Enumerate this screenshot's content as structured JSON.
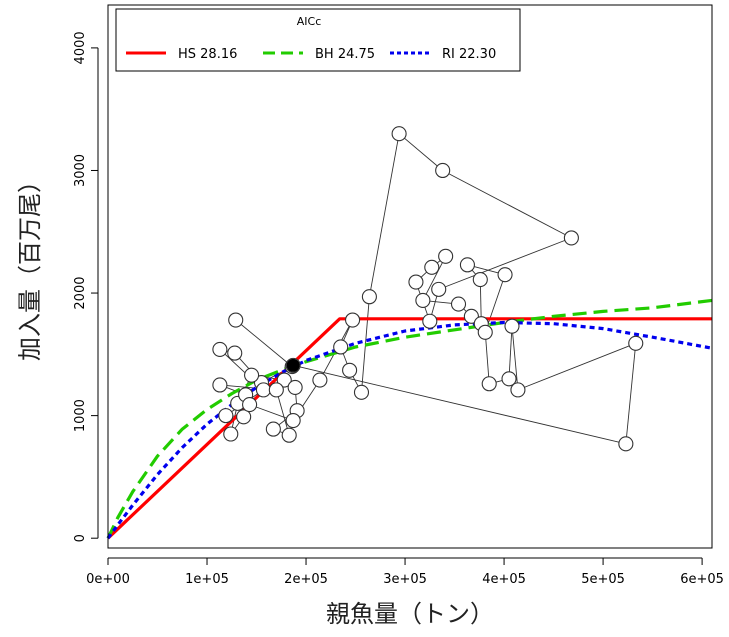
{
  "chart_data": {
    "type": "scatter",
    "xlabel": "親魚量（トン）",
    "ylabel": "加入量（百万尾）",
    "xlim": [
      0,
      610000
    ],
    "ylim": [
      -80,
      4350
    ],
    "x_ticks": [
      {
        "value": 0,
        "label": "0e+00"
      },
      {
        "value": 100000,
        "label": "1e+05"
      },
      {
        "value": 200000,
        "label": "2e+05"
      },
      {
        "value": 300000,
        "label": "3e+05"
      },
      {
        "value": 400000,
        "label": "4e+05"
      },
      {
        "value": 500000,
        "label": "5e+05"
      },
      {
        "value": 600000,
        "label": "6e+05"
      }
    ],
    "y_ticks": [
      {
        "value": 0,
        "label": "0"
      },
      {
        "value": 1000,
        "label": "1000"
      },
      {
        "value": 2000,
        "label": "2000"
      },
      {
        "value": 3000,
        "label": "3000"
      },
      {
        "value": 4000,
        "label": "4000"
      }
    ],
    "legend": {
      "title": "AICc",
      "placement": "top-center",
      "entries": [
        {
          "label": "HS 28.16",
          "color": "#ff0000",
          "style": "solid"
        },
        {
          "label": "BH 24.75",
          "color": "#22cc00",
          "style": "dashed"
        },
        {
          "label": "RI 22.30",
          "color": "#0000ee",
          "style": "dotted"
        }
      ]
    },
    "observations": [
      [
        129000,
        1780
      ],
      [
        186000,
        1400
      ],
      [
        155000,
        1270
      ],
      [
        128000,
        1510
      ],
      [
        113000,
        1540
      ],
      [
        157000,
        1210
      ],
      [
        119000,
        1000
      ],
      [
        137000,
        990
      ],
      [
        124000,
        850
      ],
      [
        131000,
        1100
      ],
      [
        145000,
        1330
      ],
      [
        178000,
        1290
      ],
      [
        189000,
        1230
      ],
      [
        191000,
        1040
      ],
      [
        167000,
        890
      ],
      [
        183000,
        840
      ],
      [
        170000,
        1210
      ],
      [
        113000,
        1250
      ],
      [
        139000,
        1170
      ],
      [
        143000,
        1090
      ],
      [
        187000,
        960
      ],
      [
        214000,
        1290
      ],
      [
        247000,
        1780
      ],
      [
        235000,
        1560
      ],
      [
        244000,
        1370
      ],
      [
        256000,
        1190
      ],
      [
        264000,
        1970
      ],
      [
        294000,
        3300
      ],
      [
        338000,
        3000
      ],
      [
        468000,
        2450
      ],
      [
        334000,
        2030
      ],
      [
        325000,
        1770
      ],
      [
        311000,
        2090
      ],
      [
        327000,
        2210
      ],
      [
        341000,
        2300
      ],
      [
        318000,
        1940
      ],
      [
        354000,
        1910
      ],
      [
        367000,
        1810
      ],
      [
        377000,
        1750
      ],
      [
        376000,
        2110
      ],
      [
        363000,
        2230
      ],
      [
        401000,
        2150
      ],
      [
        381000,
        1680
      ],
      [
        385000,
        1260
      ],
      [
        405000,
        1300
      ],
      [
        408000,
        1730
      ],
      [
        414000,
        1210
      ],
      [
        533000,
        1590
      ],
      [
        523000,
        770
      ],
      [
        187000,
        1410
      ]
    ],
    "series": [
      {
        "name": "HS 28.16",
        "color": "#ff0000",
        "x": [
          0,
          234000,
          610000
        ],
        "y": [
          0,
          1790,
          1790
        ]
      },
      {
        "name": "BH 24.75",
        "color": "#22cc00",
        "x": [
          0,
          10000,
          25000,
          50000,
          75000,
          100000,
          125000,
          150000,
          175000,
          200000,
          250000,
          300000,
          350000,
          400000,
          450000,
          500000,
          550000,
          610000
        ],
        "y": [
          0,
          170,
          380,
          670,
          890,
          1050,
          1180,
          1290,
          1370,
          1440,
          1560,
          1640,
          1700,
          1760,
          1810,
          1850,
          1880,
          1940
        ]
      },
      {
        "name": "RI 22.30",
        "color": "#0000ee",
        "x": [
          0,
          10000,
          25000,
          50000,
          75000,
          100000,
          125000,
          150000,
          175000,
          200000,
          250000,
          300000,
          350000,
          400000,
          450000,
          500000,
          550000,
          610000
        ],
        "y": [
          0,
          110,
          270,
          520,
          740,
          930,
          1090,
          1230,
          1350,
          1450,
          1590,
          1690,
          1740,
          1760,
          1750,
          1710,
          1640,
          1550
        ]
      }
    ],
    "highlight_point": [
      187000,
      1410
    ]
  }
}
